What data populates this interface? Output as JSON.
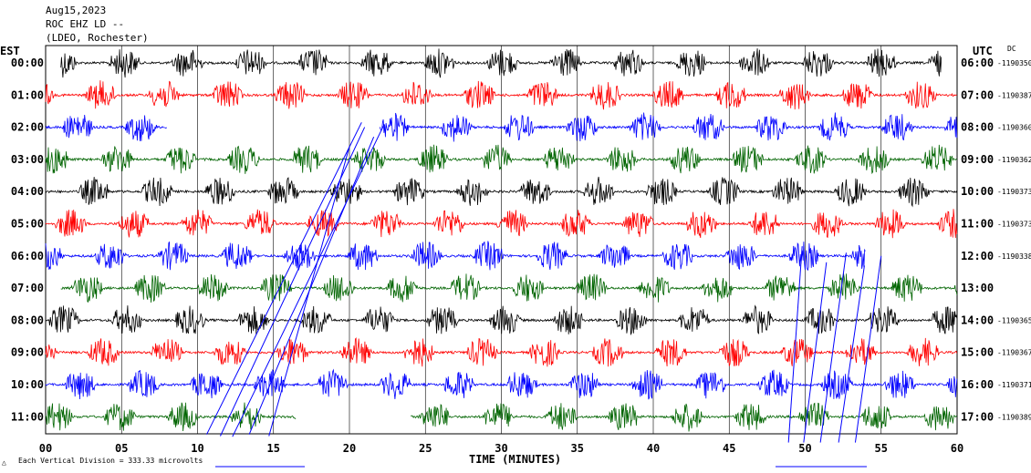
{
  "header": {
    "date": "Aug15,2023",
    "station": "ROC EHZ LD --",
    "network": "(LDEO, Rochester)",
    "left_zone": "EST",
    "right_zone": "UTC",
    "dc_label": "DC"
  },
  "footer": {
    "xlabel": "TIME (MINUTES)",
    "scale_note": "Each Vertical Division =  333.33 microvolts",
    "corner_mark": "△"
  },
  "colors": {
    "black": "#000000",
    "red": "#ff0000",
    "blue": "#0000ff",
    "green": "#006400",
    "frame": "#000000"
  },
  "chart_data": {
    "type": "line",
    "title": "ROC EHZ LD --",
    "xlabel": "TIME (MINUTES)",
    "xlim": [
      0,
      60
    ],
    "xticks": [
      "00",
      "05",
      "10",
      "15",
      "20",
      "25",
      "30",
      "35",
      "40",
      "45",
      "50",
      "55",
      "60"
    ],
    "grid_vertical_every_min": 5,
    "rows": [
      {
        "est": "00:00",
        "utc": "06:00",
        "dc": "-1190350",
        "color": "black",
        "start": 1,
        "end": 59
      },
      {
        "est": "01:00",
        "utc": "07:00",
        "dc": "-1190387",
        "color": "red",
        "start": 0,
        "end": 60
      },
      {
        "est": "02:00",
        "utc": "08:00",
        "dc": "-1190360",
        "color": "blue",
        "start": 0,
        "end": 60,
        "gap": [
          8,
          22
        ]
      },
      {
        "est": "03:00",
        "utc": "09:00",
        "dc": "-1190362",
        "color": "green",
        "start": 0,
        "end": 60
      },
      {
        "est": "04:00",
        "utc": "10:00",
        "dc": "-1190373",
        "color": "black",
        "start": 0,
        "end": 60
      },
      {
        "est": "05:00",
        "utc": "11:00",
        "dc": "-1190373",
        "color": "red",
        "start": 0,
        "end": 60
      },
      {
        "est": "06:00",
        "utc": "12:00",
        "dc": "-1190338",
        "color": "blue",
        "start": 0,
        "end": 54
      },
      {
        "est": "07:00",
        "utc": "13:00",
        "dc": "",
        "color": "green",
        "start": 1,
        "end": 60
      },
      {
        "est": "08:00",
        "utc": "14:00",
        "dc": "-1190365",
        "color": "black",
        "start": 0,
        "end": 60
      },
      {
        "est": "09:00",
        "utc": "15:00",
        "dc": "-1190367",
        "color": "red",
        "start": 0,
        "end": 60
      },
      {
        "est": "10:00",
        "utc": "16:00",
        "dc": "-1190371",
        "color": "blue",
        "start": 0,
        "end": 60
      },
      {
        "est": "11:00",
        "utc": "17:00",
        "dc": "-1190389",
        "color": "green",
        "start": 0,
        "end": 60,
        "gap": [
          16.5,
          24
        ]
      }
    ],
    "sweep_lines": [
      {
        "x0": 10.6,
        "y0": 11.55,
        "x1": 20.8,
        "y1": 1.85
      },
      {
        "x0": 11.5,
        "y0": 11.6,
        "x1": 21.0,
        "y1": 2.0
      },
      {
        "x0": 12.3,
        "y0": 11.62,
        "x1": 22.3,
        "y1": 1.9
      },
      {
        "x0": 13.4,
        "y0": 11.55,
        "x1": 21.6,
        "y1": 2.3
      },
      {
        "x0": 14.7,
        "y0": 11.6,
        "x1": 20.0,
        "y1": 2.6
      },
      {
        "x0": 48.9,
        "y0": 11.8,
        "x1": 49.8,
        "y1": 5.7
      },
      {
        "x0": 49.9,
        "y0": 11.8,
        "x1": 51.4,
        "y1": 6.2
      },
      {
        "x0": 51.0,
        "y0": 11.8,
        "x1": 52.7,
        "y1": 5.9
      },
      {
        "x0": 52.2,
        "y0": 11.8,
        "x1": 53.9,
        "y1": 6.3
      },
      {
        "x0": 53.3,
        "y0": 11.8,
        "x1": 55.0,
        "y1": 6.0
      }
    ]
  }
}
